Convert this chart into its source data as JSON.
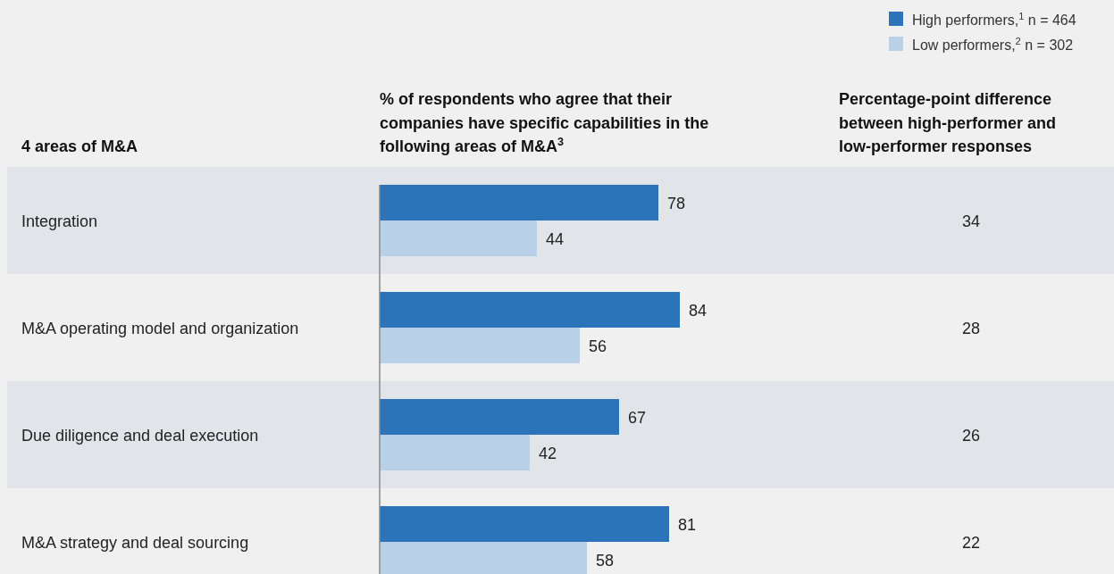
{
  "chart_data": {
    "type": "bar",
    "orientation": "horizontal",
    "title": "% of respondents who agree that their companies have specific capabilities in the following areas of M&A$^{3}$",
    "ylabel": "4 areas of M&A",
    "categories": [
      "Integration",
      "M&A operating model and organization",
      "Due diligence and deal execution",
      "M&A strategy and deal sourcing"
    ],
    "series": [
      {
        "name": "High performers,$^{1}$ n = 464",
        "color": "#2b74ba",
        "values": [
          78,
          84,
          67,
          81
        ]
      },
      {
        "name": "Low performers,$^{2}$ n = 302",
        "color": "#b9d1e8",
        "values": [
          44,
          56,
          42,
          58
        ]
      }
    ],
    "data_labels": true,
    "legend": "top right",
    "annotations": [
      "Percentage-point difference between high-performer and low-performer responses",
      "34",
      "28",
      "26",
      "22"
    ]
  }
}
